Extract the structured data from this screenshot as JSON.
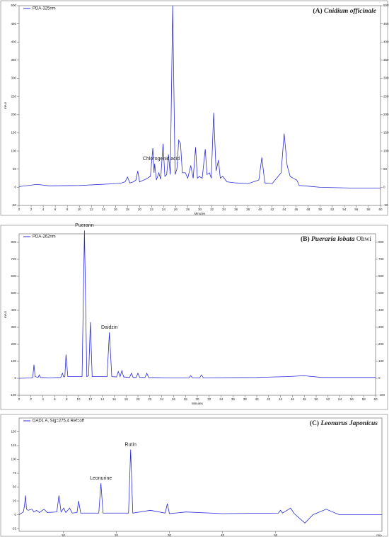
{
  "chart_data": [
    {
      "type": "line",
      "panel": "(A)",
      "name": "Cnidium officinale",
      "name_italic": true,
      "x_label": "Minutes",
      "y_label": "mAU",
      "mirror_y_ticks": true,
      "xlim": [
        0,
        60
      ],
      "xticks": [
        0,
        2,
        4,
        6,
        8,
        10,
        12,
        14,
        16,
        18,
        20,
        22,
        24,
        26,
        28,
        30,
        32,
        34,
        36,
        38,
        40,
        42,
        44,
        46,
        48,
        50,
        52,
        54,
        56,
        58,
        60
      ],
      "ylim": [
        -50,
        500
      ],
      "yticks": [
        -50,
        0,
        50,
        100,
        150,
        200,
        250,
        300,
        350,
        400,
        450,
        500
      ],
      "x": [
        0,
        3,
        5,
        10,
        16,
        17,
        17.6,
        18.0,
        18.4,
        19.0,
        19.4,
        19.7,
        20.0,
        21.0,
        21.8,
        22.2,
        22.4,
        22.5,
        22.8,
        23.2,
        23.5,
        23.9,
        24.2,
        24.5,
        24.8,
        25.1,
        25.5,
        25.9,
        26.2,
        26.5,
        26.8,
        27.1,
        27.6,
        28.0,
        28.5,
        28.9,
        29.3,
        29.6,
        29.9,
        30.4,
        30.9,
        31.2,
        31.6,
        31.9,
        32.3,
        32.7,
        33.1,
        33.4,
        33.8,
        34.5,
        36,
        38,
        39.8,
        40.3,
        40.8,
        42,
        43.5,
        44.0,
        44.5,
        45.0,
        45.5,
        46.1,
        46.5,
        48,
        50,
        55,
        60
      ],
      "series": [
        {
          "name": "PDA-325nm",
          "color": "#2b2bd6",
          "values": [
            2,
            8,
            4,
            5,
            10,
            12,
            15,
            28,
            12,
            15,
            20,
            45,
            15,
            22,
            30,
            108,
            40,
            65,
            20,
            40,
            22,
            120,
            30,
            35,
            90,
            35,
            500,
            35,
            50,
            130,
            120,
            40,
            40,
            25,
            60,
            25,
            110,
            25,
            30,
            25,
            105,
            35,
            40,
            25,
            205,
            45,
            75,
            25,
            30,
            15,
            12,
            10,
            20,
            82,
            12,
            10,
            40,
            148,
            60,
            30,
            25,
            20,
            5,
            3,
            0,
            -2,
            -2
          ]
        }
      ],
      "annotations": [
        {
          "text": "Chlorogenic acid",
          "x": 23.6,
          "y": 65
        }
      ]
    },
    {
      "type": "line",
      "panel": "(B)",
      "name": "Pueraria lobata",
      "name_italic": true,
      "authority": "Ohwi",
      "x_label": "Minutes",
      "y_label": "mAU",
      "mirror_y_ticks": true,
      "xlim": [
        0,
        60
      ],
      "xticks": [
        0,
        2,
        4,
        6,
        8,
        10,
        12,
        14,
        16,
        18,
        20,
        22,
        24,
        26,
        28,
        30,
        32,
        34,
        36,
        38,
        40,
        42,
        44,
        46,
        48,
        50,
        52,
        54,
        56,
        58,
        60
      ],
      "ylim": [
        -100,
        850
      ],
      "yticks": [
        -100,
        0,
        100,
        200,
        300,
        400,
        500,
        600,
        700,
        800
      ],
      "x": [
        0,
        2,
        2.3,
        2.5,
        2.7,
        3.2,
        3.4,
        3.6,
        5,
        7.0,
        7.3,
        7.5,
        7.7,
        7.9,
        8.2,
        10.6,
        11.0,
        11.4,
        11.7,
        12.0,
        12.3,
        14.8,
        15.2,
        15.6,
        16.4,
        16.7,
        17.0,
        17.3,
        17.6,
        18.6,
        18.9,
        19.2,
        19.7,
        20,
        20.3,
        21.2,
        21.5,
        21.8,
        25,
        28.6,
        28.9,
        29.2,
        30.4,
        30.7,
        31.0,
        40,
        45,
        48,
        51,
        55,
        60
      ],
      "series": [
        {
          "name": "PDA-262nm",
          "color": "#2b2bd6",
          "values": [
            0,
            2,
            5,
            80,
            10,
            5,
            20,
            5,
            3,
            5,
            30,
            8,
            10,
            140,
            10,
            10,
            870,
            10,
            15,
            330,
            10,
            10,
            270,
            10,
            8,
            40,
            10,
            45,
            8,
            5,
            30,
            5,
            5,
            30,
            5,
            5,
            30,
            5,
            3,
            3,
            15,
            3,
            3,
            20,
            3,
            5,
            10,
            15,
            5,
            5,
            5
          ]
        }
      ],
      "annotations": [
        {
          "text": "Puerarin",
          "x": 11.0,
          "y": 870
        },
        {
          "text": "Daidzin",
          "x": 15.2,
          "y": 270
        }
      ]
    },
    {
      "type": "line",
      "panel": "(C)",
      "name": "Leonurus Japonicus",
      "name_italic": true,
      "x_label": "min",
      "mirror_y_ticks": false,
      "xlim": [
        1.7,
        70
      ],
      "xticks": [
        10,
        20,
        30,
        40,
        50
      ],
      "ylim": [
        -30,
        175
      ],
      "yticks": [
        -25,
        0,
        25,
        50,
        75,
        100,
        125,
        150
      ],
      "x": [
        1.7,
        2.5,
        2.7,
        2.9,
        3.1,
        3.4,
        4.1,
        4.5,
        5.0,
        5.5,
        6.4,
        7,
        8.8,
        9.2,
        9.6,
        10.1,
        10.5,
        11.2,
        11.7,
        12.6,
        12.9,
        13.3,
        16.7,
        17.1,
        17.5,
        22.3,
        22.7,
        23.1,
        26.4,
        29.2,
        29.6,
        30.0,
        33.1,
        40,
        50.5,
        50.9,
        51.3,
        52.8,
        53.5,
        55.5,
        57,
        59.5,
        62,
        65,
        70
      ],
      "series": [
        {
          "name": "DAD1 A, Sig=275,4 Ref=off",
          "color": "#2b2bd6",
          "values": [
            0,
            5,
            15,
            35,
            10,
            8,
            10,
            5,
            8,
            4,
            10,
            4,
            5,
            35,
            5,
            12,
            4,
            12,
            3,
            4,
            25,
            3,
            3,
            57,
            3,
            3,
            118,
            3,
            8,
            3,
            20,
            2,
            5,
            2,
            3,
            8,
            3,
            12,
            2,
            -15,
            0,
            10,
            0,
            0,
            0
          ]
        }
      ],
      "annotations": [
        {
          "text": "Leonurine",
          "x": 17.1,
          "y": 57
        },
        {
          "text": "Rutin",
          "x": 22.7,
          "y": 118
        }
      ]
    }
  ]
}
